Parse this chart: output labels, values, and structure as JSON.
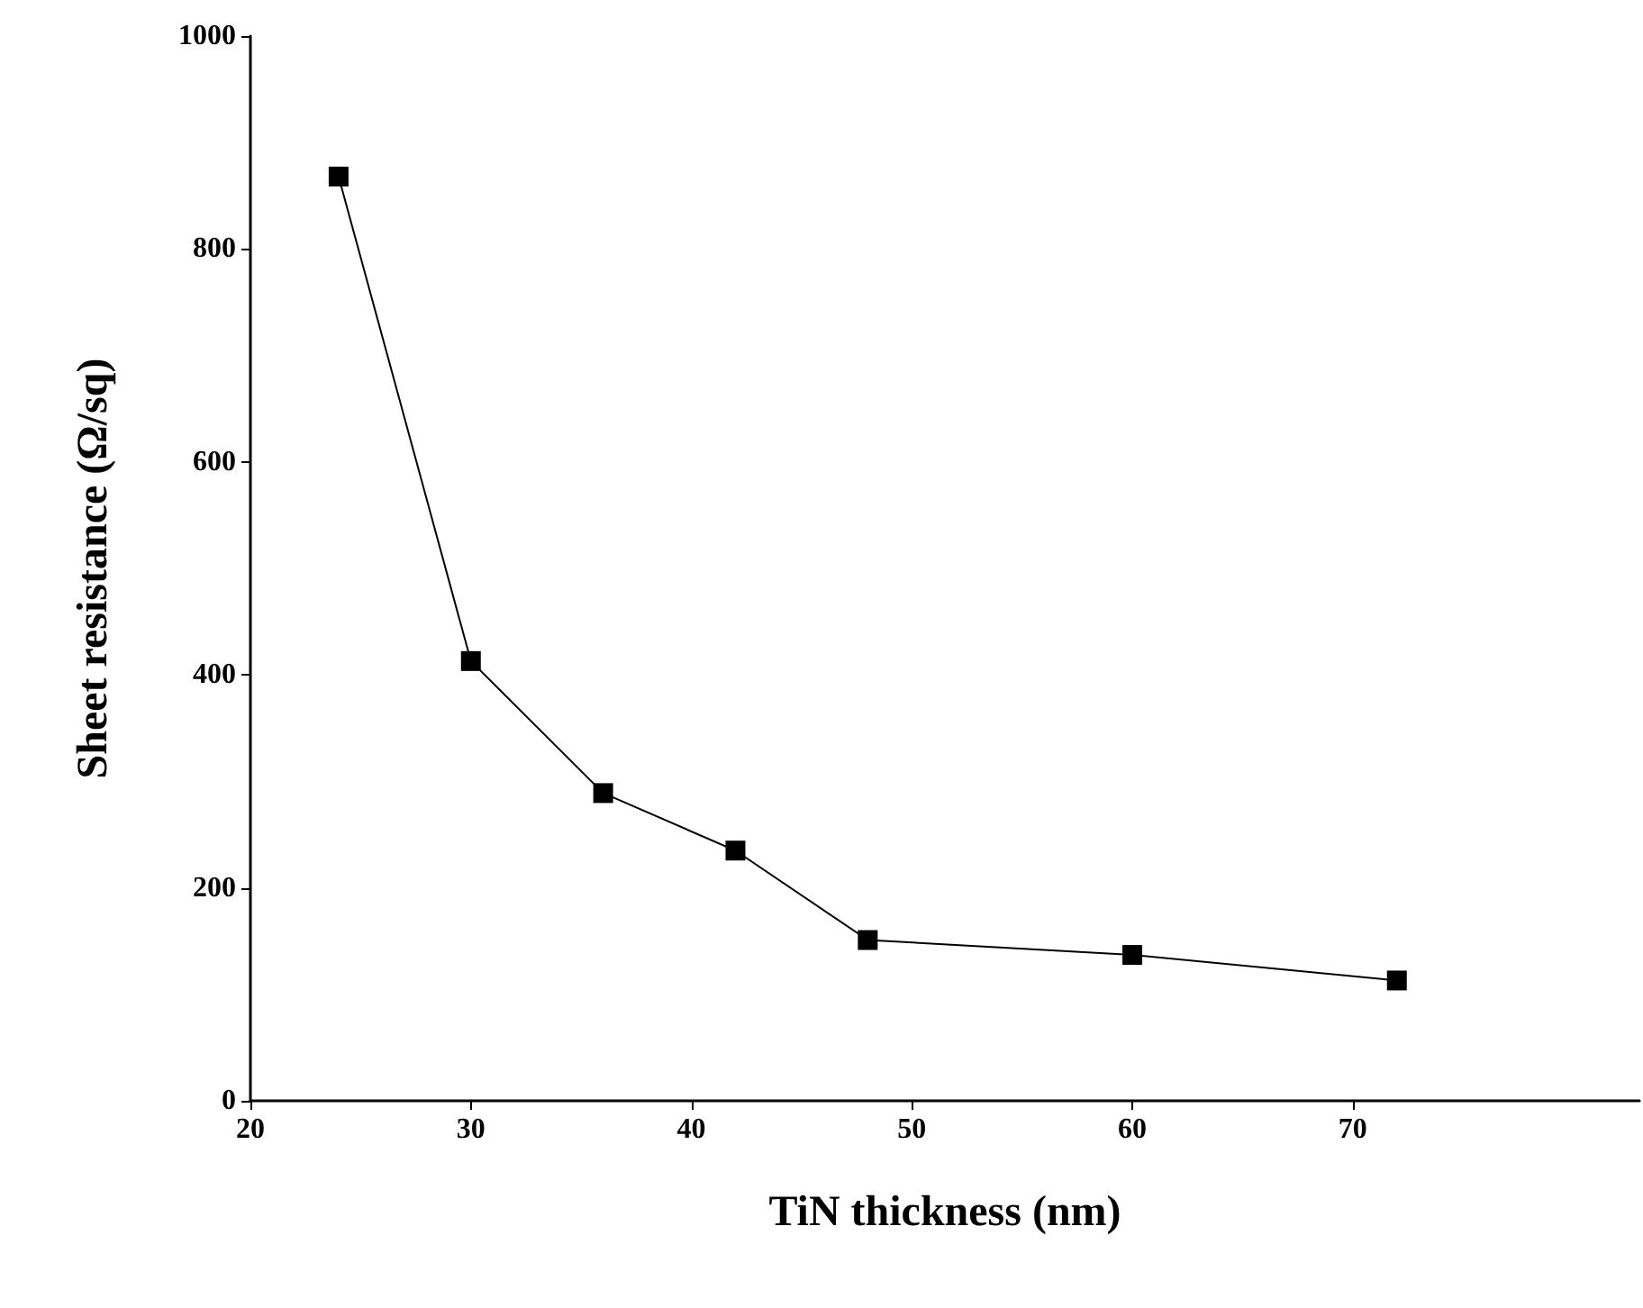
{
  "chart_data": {
    "type": "line",
    "xlabel": "TiN thickness (nm)",
    "ylabel": "Sheet resistance (Ω/sq)",
    "x": [
      24,
      30,
      36,
      42,
      48,
      60,
      72
    ],
    "series": [
      {
        "color": "#000000",
        "values": [
          868,
          413,
          289,
          235,
          151,
          137,
          113
        ]
      }
    ],
    "xlim": [
      20,
      83
    ],
    "xticks": [
      20,
      30,
      40,
      50,
      60,
      70
    ],
    "ylim": [
      0,
      1000
    ],
    "yticks": [
      0,
      200,
      400,
      600,
      800,
      1000
    ],
    "grid": false,
    "marker": "square",
    "line_style": "solid"
  }
}
